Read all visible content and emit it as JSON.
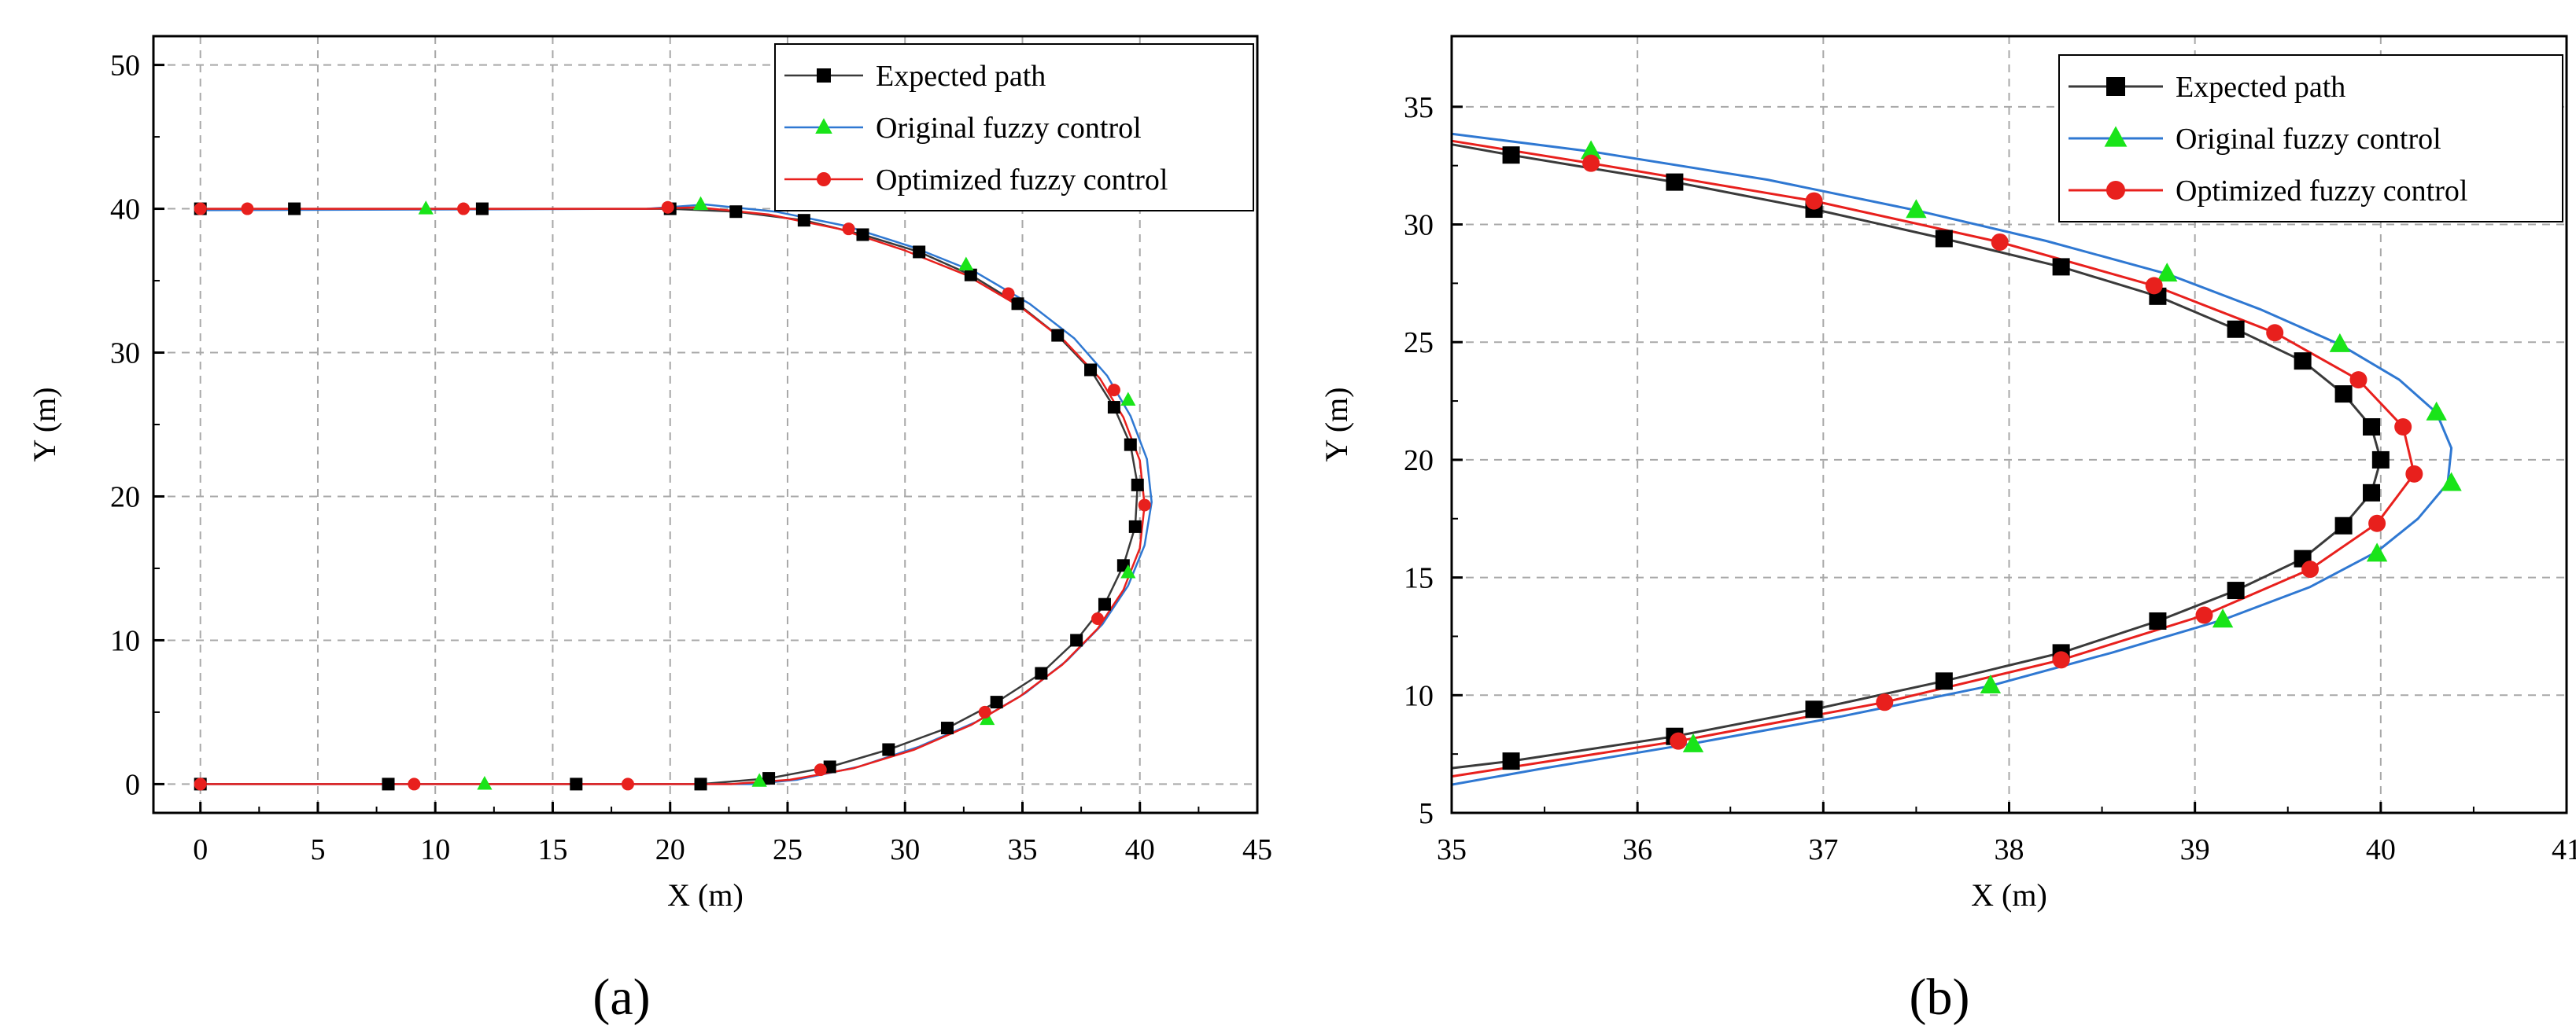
{
  "figure": {
    "captions": [
      "(a)",
      "(b)"
    ]
  },
  "colors": {
    "expected": "#3a3a3a",
    "original": "#2f78d2",
    "optimized": "#e8201d",
    "original_marker": "#19e419",
    "optimized_marker": "#e8201d",
    "expected_marker": "#000000",
    "grid": "#a8a8a8"
  },
  "chart_data": [
    {
      "type": "line",
      "title": "",
      "caption": "(a)",
      "xlabel": "X (m)",
      "ylabel": "Y (m)",
      "xlim": [
        -2,
        45
      ],
      "ylim": [
        -2,
        52
      ],
      "xticks": [
        0,
        5,
        10,
        15,
        20,
        25,
        30,
        35,
        40,
        45
      ],
      "yticks": [
        0,
        10,
        20,
        30,
        40,
        50
      ],
      "xtick_labels": [
        "0",
        "5",
        "10",
        "15",
        "20",
        "25",
        "30",
        "35",
        "40",
        "45"
      ],
      "ytick_labels": [
        "0",
        "10",
        "20",
        "30",
        "40",
        "50"
      ],
      "grid": true,
      "legend": "top-right",
      "series": [
        {
          "name": "Expected path",
          "marker": "square",
          "line": [
            [
              0,
              40
            ],
            [
              20,
              40
            ],
            [
              22.8,
              39.8
            ],
            [
              25.7,
              39.2
            ],
            [
              28.2,
              38.2
            ],
            [
              30.6,
              37
            ],
            [
              32.8,
              35.4
            ],
            [
              34.8,
              33.4
            ],
            [
              36.5,
              31.2
            ],
            [
              37.9,
              28.8
            ],
            [
              38.9,
              26.2
            ],
            [
              39.6,
              23.6
            ],
            [
              39.9,
              20.8
            ],
            [
              39.8,
              17.9
            ],
            [
              39.3,
              15.2
            ],
            [
              38.5,
              12.5
            ],
            [
              37.3,
              10
            ],
            [
              35.8,
              7.7
            ],
            [
              33.9,
              5.7
            ],
            [
              31.8,
              3.9
            ],
            [
              29.3,
              2.4
            ],
            [
              26.8,
              1.2
            ],
            [
              24.2,
              0.4
            ],
            [
              21.3,
              0
            ],
            [
              0,
              0
            ]
          ],
          "markers": [
            [
              0,
              40
            ],
            [
              4,
              40
            ],
            [
              12,
              40
            ],
            [
              20,
              40
            ],
            [
              22.8,
              39.8
            ],
            [
              25.7,
              39.2
            ],
            [
              28.2,
              38.2
            ],
            [
              30.6,
              37
            ],
            [
              32.8,
              35.4
            ],
            [
              34.8,
              33.4
            ],
            [
              36.5,
              31.2
            ],
            [
              37.9,
              28.8
            ],
            [
              38.9,
              26.2
            ],
            [
              39.6,
              23.6
            ],
            [
              39.9,
              20.8
            ],
            [
              39.8,
              17.9
            ],
            [
              39.3,
              15.2
            ],
            [
              38.5,
              12.5
            ],
            [
              37.3,
              10
            ],
            [
              35.8,
              7.7
            ],
            [
              33.9,
              5.7
            ],
            [
              31.8,
              3.9
            ],
            [
              29.3,
              2.4
            ],
            [
              26.8,
              1.2
            ],
            [
              24.2,
              0.4
            ],
            [
              21.3,
              0
            ],
            [
              16,
              0
            ],
            [
              8,
              0
            ],
            [
              0,
              0
            ]
          ]
        },
        {
          "name": "Original fuzzy control",
          "marker": "triangle",
          "line": [
            [
              0,
              39.9
            ],
            [
              19,
              40
            ],
            [
              21.5,
              40.3
            ],
            [
              24.5,
              39.8
            ],
            [
              27.5,
              38.8
            ],
            [
              30.4,
              37.3
            ],
            [
              33,
              35.6
            ],
            [
              35.3,
              33.4
            ],
            [
              37.2,
              31
            ],
            [
              38.6,
              28.4
            ],
            [
              39.6,
              25.6
            ],
            [
              40.3,
              22.6
            ],
            [
              40.5,
              19.6
            ],
            [
              40.2,
              16.6
            ],
            [
              39.5,
              13.8
            ],
            [
              38.4,
              11.1
            ],
            [
              36.9,
              8.6
            ],
            [
              35.1,
              6.3
            ],
            [
              33,
              4.3
            ],
            [
              30.6,
              2.6
            ],
            [
              28,
              1.2
            ],
            [
              25.4,
              0.3
            ],
            [
              23.5,
              0
            ],
            [
              0,
              0
            ]
          ],
          "markers": [
            [
              9.6,
              40
            ],
            [
              21.3,
              40.3
            ],
            [
              32.6,
              36.1
            ],
            [
              39.5,
              26.7
            ],
            [
              39.5,
              14.7
            ],
            [
              33.5,
              4.5
            ],
            [
              23.8,
              0.2
            ],
            [
              12.1,
              0
            ]
          ]
        },
        {
          "name": "Optimized fuzzy control",
          "marker": "circle",
          "line": [
            [
              0,
              40
            ],
            [
              19,
              40
            ],
            [
              21.2,
              40.1
            ],
            [
              24.2,
              39.6
            ],
            [
              27.2,
              38.6
            ],
            [
              30,
              37.1
            ],
            [
              32.6,
              35.4
            ],
            [
              34.9,
              33.2
            ],
            [
              36.8,
              30.8
            ],
            [
              38.3,
              28.2
            ],
            [
              39.3,
              25.5
            ],
            [
              40,
              22.5
            ],
            [
              40.2,
              19.4
            ],
            [
              40,
              16.4
            ],
            [
              39.3,
              13.5
            ],
            [
              38.2,
              10.8
            ],
            [
              36.7,
              8.3
            ],
            [
              34.9,
              6.1
            ],
            [
              32.8,
              4.1
            ],
            [
              30.4,
              2.4
            ],
            [
              27.8,
              1.1
            ],
            [
              25.1,
              0.3
            ],
            [
              22.6,
              0
            ],
            [
              0,
              0
            ]
          ],
          "markers": [
            [
              0,
              40
            ],
            [
              2,
              40
            ],
            [
              11.2,
              40
            ],
            [
              19.9,
              40.1
            ],
            [
              27.6,
              38.6
            ],
            [
              34.4,
              34.1
            ],
            [
              38.9,
              27.4
            ],
            [
              40.2,
              19.4
            ],
            [
              38.2,
              11.5
            ],
            [
              33.4,
              5
            ],
            [
              26.4,
              1
            ],
            [
              18.2,
              0
            ],
            [
              9.1,
              0
            ],
            [
              0,
              0
            ]
          ]
        }
      ]
    },
    {
      "type": "line",
      "title": "",
      "caption": "(b)",
      "xlabel": "X (m)",
      "ylabel": "Y (m)",
      "xlim": [
        35,
        41
      ],
      "ylim": [
        5,
        38
      ],
      "xticks": [
        35,
        36,
        37,
        38,
        39,
        40,
        41
      ],
      "yticks": [
        5,
        10,
        15,
        20,
        25,
        30,
        35
      ],
      "xtick_labels": [
        "35",
        "36",
        "37",
        "38",
        "39",
        "40",
        "41"
      ],
      "ytick_labels": [
        "5",
        "10",
        "15",
        "20",
        "25",
        "30",
        "35"
      ],
      "grid": true,
      "legend": "top-right",
      "series": [
        {
          "name": "Expected path",
          "marker": "square",
          "line": [
            [
              35,
              33.4
            ],
            [
              35.32,
              32.95
            ],
            [
              36.2,
              31.8
            ],
            [
              36.95,
              30.65
            ],
            [
              37.65,
              29.4
            ],
            [
              38.28,
              28.2
            ],
            [
              38.8,
              26.95
            ],
            [
              39.22,
              25.55
            ],
            [
              39.58,
              24.2
            ],
            [
              39.8,
              22.8
            ],
            [
              39.95,
              21.4
            ],
            [
              40,
              20
            ],
            [
              39.95,
              18.6
            ],
            [
              39.8,
              17.2
            ],
            [
              39.58,
              15.8
            ],
            [
              39.22,
              14.45
            ],
            [
              38.8,
              13.15
            ],
            [
              38.28,
              11.8
            ],
            [
              37.65,
              10.6
            ],
            [
              36.95,
              9.4
            ],
            [
              36.2,
              8.25
            ],
            [
              35.32,
              7.2
            ],
            [
              35,
              6.9
            ]
          ],
          "markers": [
            [
              35.32,
              32.95
            ],
            [
              36.2,
              31.8
            ],
            [
              36.95,
              30.65
            ],
            [
              37.65,
              29.4
            ],
            [
              38.28,
              28.2
            ],
            [
              38.8,
              26.95
            ],
            [
              39.22,
              25.55
            ],
            [
              39.58,
              24.2
            ],
            [
              39.8,
              22.8
            ],
            [
              39.95,
              21.4
            ],
            [
              40,
              20
            ],
            [
              39.95,
              18.6
            ],
            [
              39.8,
              17.2
            ],
            [
              39.58,
              15.8
            ],
            [
              39.22,
              14.45
            ],
            [
              38.8,
              13.15
            ],
            [
              38.28,
              11.8
            ],
            [
              37.65,
              10.6
            ],
            [
              36.95,
              9.4
            ],
            [
              36.2,
              8.25
            ],
            [
              35.32,
              7.2
            ]
          ]
        },
        {
          "name": "Original fuzzy control",
          "marker": "triangle",
          "line": [
            [
              35,
              33.85
            ],
            [
              35.75,
              33.1
            ],
            [
              36.7,
              31.9
            ],
            [
              37.5,
              30.6
            ],
            [
              38.2,
              29.3
            ],
            [
              38.85,
              27.9
            ],
            [
              39.35,
              26.4
            ],
            [
              39.78,
              24.9
            ],
            [
              40.1,
              23.4
            ],
            [
              40.3,
              22
            ],
            [
              40.38,
              20.5
            ],
            [
              40.36,
              19
            ],
            [
              40.2,
              17.5
            ],
            [
              39.98,
              16.1
            ],
            [
              39.62,
              14.6
            ],
            [
              39.15,
              13.2
            ],
            [
              38.55,
              11.8
            ],
            [
              37.9,
              10.4
            ],
            [
              37.1,
              9.1
            ],
            [
              36.3,
              7.95
            ],
            [
              35.5,
              6.9
            ],
            [
              35,
              6.2
            ]
          ],
          "markers": [
            [
              35.75,
              33.1
            ],
            [
              37.5,
              30.6
            ],
            [
              38.85,
              27.9
            ],
            [
              39.78,
              24.9
            ],
            [
              40.3,
              22
            ],
            [
              40.38,
              19
            ],
            [
              39.98,
              16
            ],
            [
              39.15,
              13.2
            ],
            [
              37.9,
              10.4
            ],
            [
              36.3,
              7.9
            ]
          ]
        },
        {
          "name": "Optimized fuzzy control",
          "marker": "circle",
          "line": [
            [
              35,
              33.55
            ],
            [
              35.75,
              32.6
            ],
            [
              36.95,
              31
            ],
            [
              37.95,
              29.25
            ],
            [
              38.78,
              27.4
            ],
            [
              39.43,
              25.4
            ],
            [
              39.88,
              23.4
            ],
            [
              40.12,
              21.4
            ],
            [
              40.18,
              19.4
            ],
            [
              39.98,
              17.3
            ],
            [
              39.62,
              15.35
            ],
            [
              39.05,
              13.4
            ],
            [
              38.28,
              11.5
            ],
            [
              37.33,
              9.7
            ],
            [
              36.22,
              8.05
            ],
            [
              35,
              6.55
            ]
          ],
          "markers": [
            [
              35.75,
              32.6
            ],
            [
              36.95,
              31
            ],
            [
              37.95,
              29.25
            ],
            [
              38.78,
              27.4
            ],
            [
              39.43,
              25.4
            ],
            [
              39.88,
              23.4
            ],
            [
              40.12,
              21.4
            ],
            [
              40.18,
              19.4
            ],
            [
              39.98,
              17.3
            ],
            [
              39.62,
              15.35
            ],
            [
              39.05,
              13.4
            ],
            [
              38.28,
              11.5
            ],
            [
              37.33,
              9.7
            ],
            [
              36.22,
              8.05
            ]
          ]
        }
      ]
    }
  ]
}
